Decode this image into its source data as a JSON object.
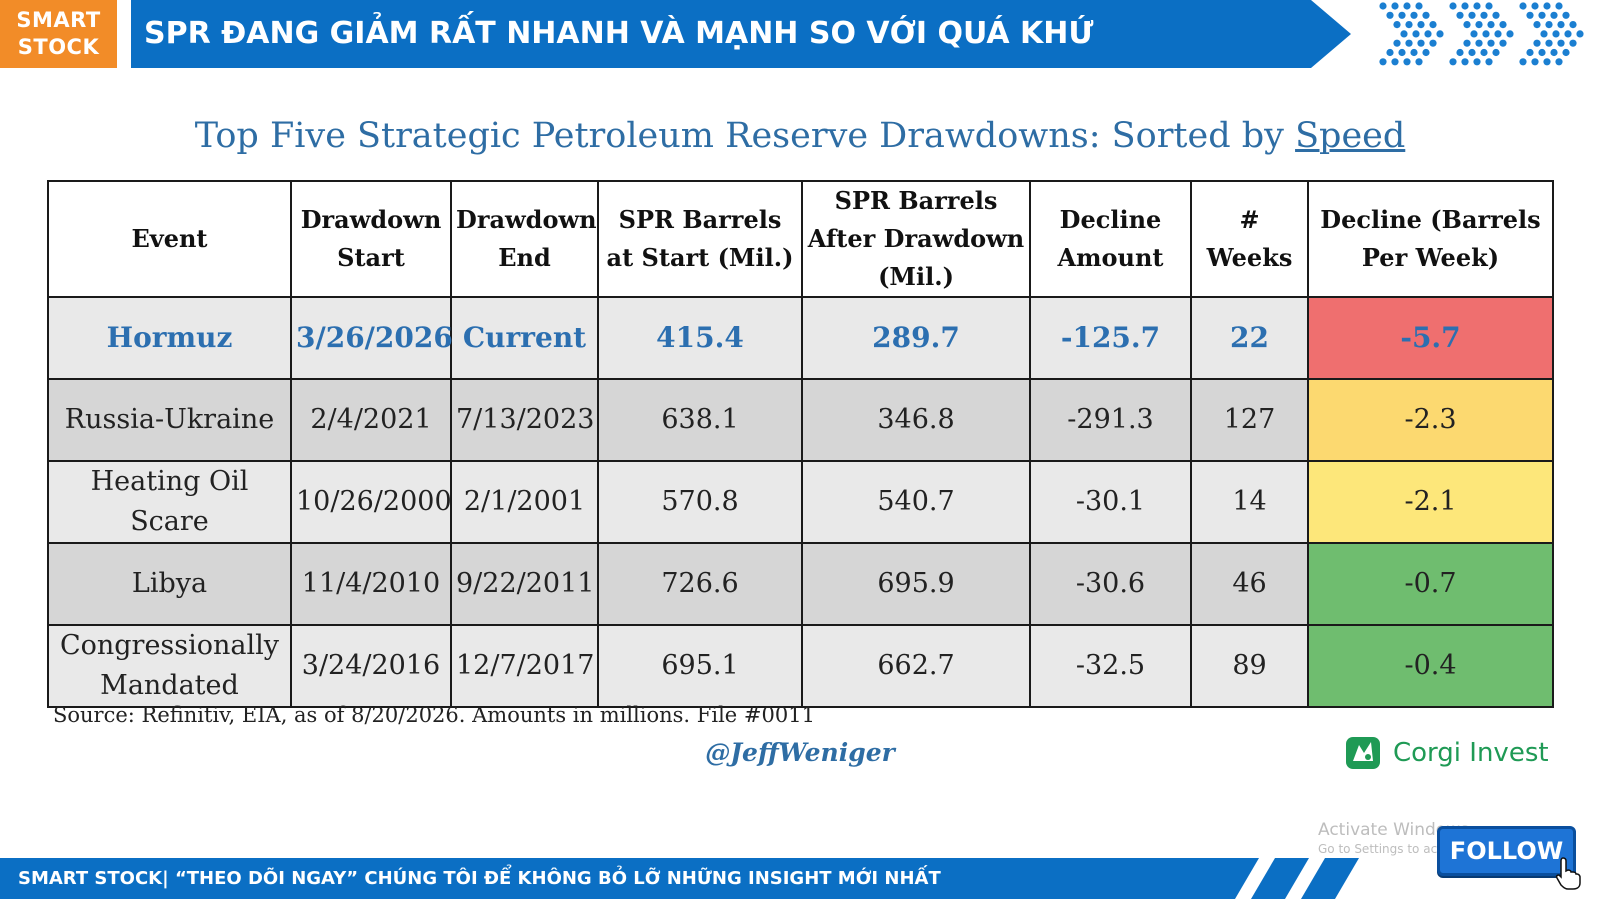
{
  "header": {
    "logo_line1": "SMART",
    "logo_line2": "STOCK",
    "title": "SPR ĐANG GIẢM RẤT NHANH VÀ MẠNH SO VỚI QUÁ KHỨ"
  },
  "table_title": {
    "prefix": "Top Five Strategic Petroleum Reserve Drawdowns: Sorted by ",
    "emphasis": "Speed"
  },
  "table": {
    "headers": [
      "Event",
      "Drawdown Start",
      "Drawdown End",
      "SPR Barrels at Start (Mil.)",
      "SPR Barrels After Drawdown (Mil.)",
      "Decline Amount",
      "# Weeks",
      "Decline (Barrels Per Week)"
    ],
    "rows": [
      {
        "event": "Hormuz",
        "start": "3/26/2026",
        "end": "Current",
        "barrels_start": "415.4",
        "barrels_after": "289.7",
        "decline": "-125.7",
        "weeks": "22",
        "per_week": "-5.7"
      },
      {
        "event": "Russia-Ukraine",
        "start": "2/4/2021",
        "end": "7/13/2023",
        "barrels_start": "638.1",
        "barrels_after": "346.8",
        "decline": "-291.3",
        "weeks": "127",
        "per_week": "-2.3"
      },
      {
        "event": "Heating Oil Scare",
        "start": "10/26/2000",
        "end": "2/1/2001",
        "barrels_start": "570.8",
        "barrels_after": "540.7",
        "decline": "-30.1",
        "weeks": "14",
        "per_week": "-2.1"
      },
      {
        "event": "Libya",
        "start": "11/4/2010",
        "end": "9/22/2011",
        "barrels_start": "726.6",
        "barrels_after": "695.9",
        "decline": "-30.6",
        "weeks": "46",
        "per_week": "-0.7"
      },
      {
        "event": "Congressionally Mandated",
        "start": "3/24/2016",
        "end": "12/7/2017",
        "barrels_start": "695.1",
        "barrels_after": "662.7",
        "decline": "-32.5",
        "weeks": "89",
        "per_week": "-0.4"
      }
    ],
    "rate_colors": [
      "#ef6f6f",
      "#fcd970",
      "#fde77a",
      "#6fbd6f",
      "#6fbd6f"
    ]
  },
  "source": "Source: Refinitiv, EIA, as of 8/20/2026. Amounts in millions. File #0011",
  "handle": "@JeffWeniger",
  "brand": {
    "name": "Corgi Invest",
    "color": "#1f9a55",
    "icon": "corgi-logo-icon"
  },
  "watermark": {
    "line1": "Activate Windows",
    "line2": "Go to Settings to activate Windows."
  },
  "footer": {
    "text": "SMART STOCK| “THEO DÕI NGAY” CHÚNG TÔI ĐỂ KHÔNG BỎ LỠ NHỮNG INSIGHT MỚI NHẤT"
  },
  "follow_button": {
    "label": "FOLLOW"
  },
  "colors": {
    "orange": "#f28c28",
    "blue": "#0b6fc4",
    "title_blue": "#2e6da4"
  }
}
